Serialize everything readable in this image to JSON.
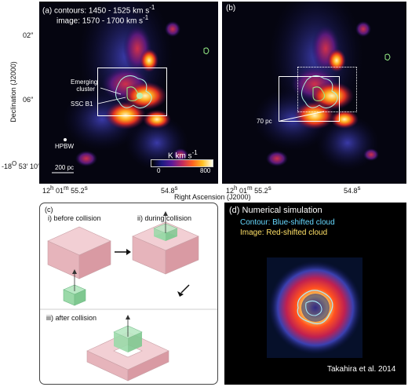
{
  "panel_a": {
    "label": "(a)",
    "line1": "contours: 1450 - 1525 km s",
    "line1_sup": "-1",
    "line2": "image: 1570 - 1700 km s",
    "line2_sup": "-1",
    "emerging_cluster_1": "Emerging",
    "emerging_cluster_2": "cluster",
    "sso": "SSC B1",
    "hpbw": "HPBW",
    "scalebar": "200 pc",
    "colorbar_title": "K km s",
    "colorbar_title_sup": "-1",
    "cb_min": "0",
    "cb_max": "800"
  },
  "panel_b": {
    "label": "(b)",
    "scale": "70 pc"
  },
  "axes": {
    "ylabel": "Declination (J2000)",
    "xlabel": "Right Ascension (J2000)",
    "yticks": [
      "02″",
      "06″"
    ],
    "ytick_last_pre": "-18",
    "ytick_last_sup": "O",
    "ytick_last_post": " 53′ 10″",
    "x_a_left_pre": "12",
    "x_a_left_h": "h",
    "x_a_left_mid": " 01",
    "x_a_left_m": "m",
    "x_a_left_val": " 55.2",
    "x_a_left_s": "s",
    "x_a_right_val": "54.8",
    "x_a_right_s": "s"
  },
  "panel_c": {
    "label": "(c)",
    "step1": "i) before collision",
    "step2": "ii) during collision",
    "step3": "iii) after collision"
  },
  "panel_d": {
    "label": "(d)",
    "title": "Numerical simulation",
    "contour": "Contour: Blue-shifted cloud",
    "image": "Image: Red-shifted cloud",
    "credit": "Takahira et al. 2014"
  },
  "colors": {
    "contour_cyan": "#aaf0e0",
    "contour_green": "#98f088",
    "cube_pink": "#e9b9c0",
    "cube_green": "#9ad9a8",
    "sim_title": "#ffffff",
    "sim_contour_text": "#66d9ff",
    "sim_image_text": "#ffe066"
  }
}
